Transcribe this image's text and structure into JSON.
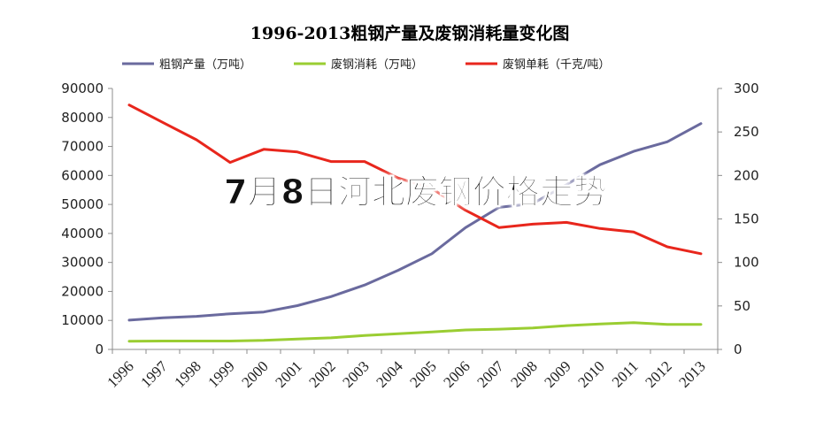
{
  "overlay_text": "7月8日河北废钢价格走势",
  "chart_data": {
    "type": "line",
    "title": "1996-2013粗钢产量及废钢消耗量变化图",
    "categories": [
      "1996",
      "1997",
      "1998",
      "1999",
      "2000",
      "2001",
      "2002",
      "2003",
      "2004",
      "2005",
      "2006",
      "2007",
      "2008",
      "2009",
      "2010",
      "2011",
      "2012",
      "2013"
    ],
    "y_left": {
      "min": 0,
      "max": 90000,
      "ticks": [
        "0",
        "10000",
        "20000",
        "30000",
        "40000",
        "50000",
        "60000",
        "70000",
        "80000",
        "90000"
      ]
    },
    "y_right": {
      "min": 0,
      "max": 300,
      "ticks": [
        "0",
        "50",
        "100",
        "150",
        "200",
        "250",
        "300"
      ]
    },
    "legend_position": "top",
    "grid": false,
    "series": [
      {
        "name": "粗钢产量（万吨）",
        "axis": "left",
        "color": "#6a6a9e",
        "values": [
          10100,
          10900,
          11400,
          12300,
          12900,
          15100,
          18200,
          22200,
          27300,
          33000,
          42000,
          49000,
          50300,
          56800,
          63700,
          68300,
          71600,
          77900
        ]
      },
      {
        "name": "废钢消耗（万吨）",
        "axis": "left",
        "color": "#9acd32",
        "values": [
          2800,
          2900,
          2900,
          2900,
          3100,
          3600,
          4000,
          4800,
          5400,
          6000,
          6700,
          7000,
          7400,
          8200,
          8800,
          9200,
          8600,
          8600
        ]
      },
      {
        "name": "废钢单耗（千克/吨）",
        "axis": "right",
        "color": "#e8261c",
        "values": [
          281,
          261,
          241,
          215,
          230,
          227,
          216,
          216,
          197,
          185,
          160,
          140,
          144,
          146,
          139,
          135,
          118,
          110
        ]
      }
    ]
  }
}
